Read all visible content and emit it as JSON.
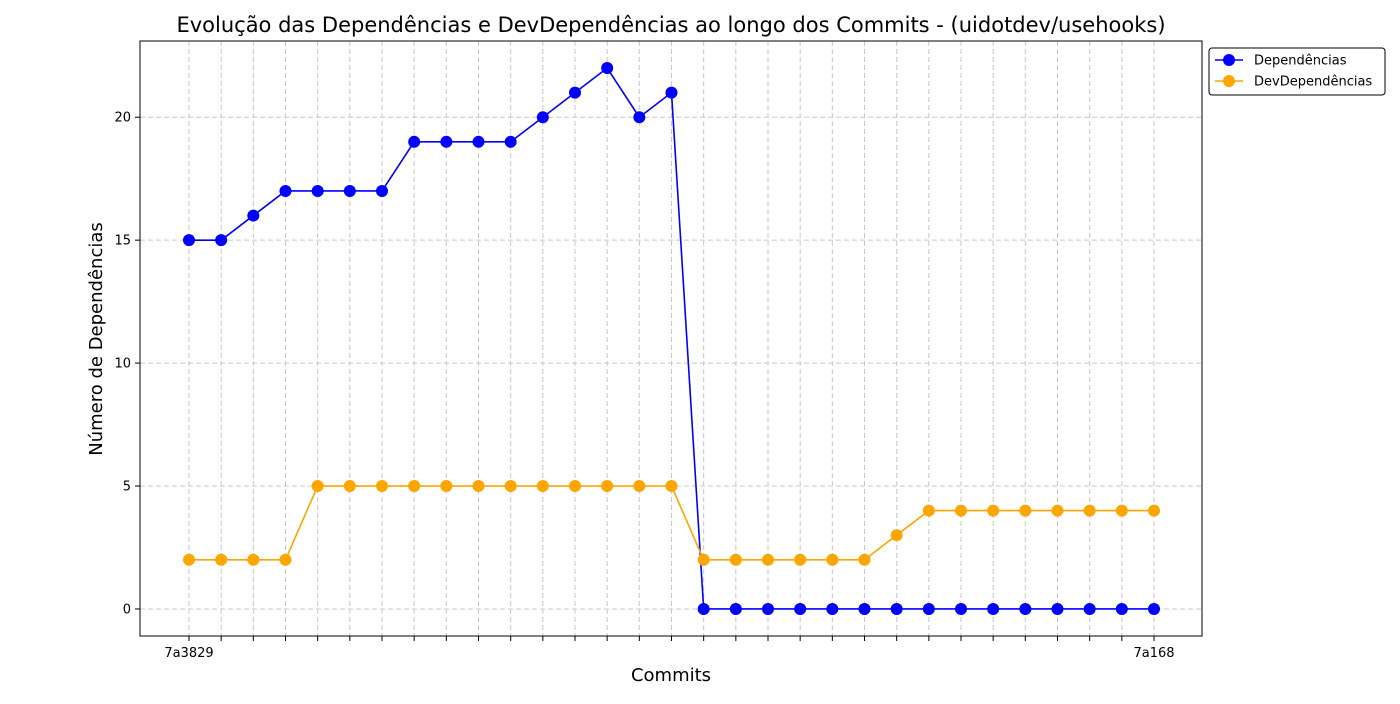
{
  "chart_data": {
    "type": "line",
    "title": "Evolução das Dependências e DevDependências ao longo dos Commits - (uidotdev/usehooks)",
    "xlabel": "Commits",
    "ylabel": "Número de Dependências",
    "categories": [
      "7a3829",
      "",
      "",
      "",
      "",
      "",
      "",
      "",
      "",
      "",
      "",
      "",
      "",
      "",
      "",
      "",
      "",
      "",
      "",
      "",
      "",
      "",
      "",
      "",
      "",
      "",
      "",
      "",
      "",
      "",
      "7a168"
    ],
    "ylim": [
      -1.1,
      23.1
    ],
    "yticks": [
      0,
      5,
      10,
      15,
      20
    ],
    "grid": true,
    "legend_position": "upper-right-outside",
    "series": [
      {
        "name": "Dependências",
        "color": "#0000ff",
        "values": [
          15,
          15,
          16,
          17,
          17,
          17,
          17,
          19,
          19,
          19,
          19,
          20,
          21,
          22,
          20,
          21,
          0,
          0,
          0,
          0,
          0,
          0,
          0,
          0,
          0,
          0,
          0,
          0,
          0,
          0,
          0
        ]
      },
      {
        "name": "DevDependências",
        "color": "#ffa500",
        "values": [
          2,
          2,
          2,
          2,
          5,
          5,
          5,
          5,
          5,
          5,
          5,
          5,
          5,
          5,
          5,
          5,
          2,
          2,
          2,
          2,
          2,
          2,
          3,
          4,
          4,
          4,
          4,
          4,
          4,
          4,
          4
        ]
      }
    ]
  }
}
